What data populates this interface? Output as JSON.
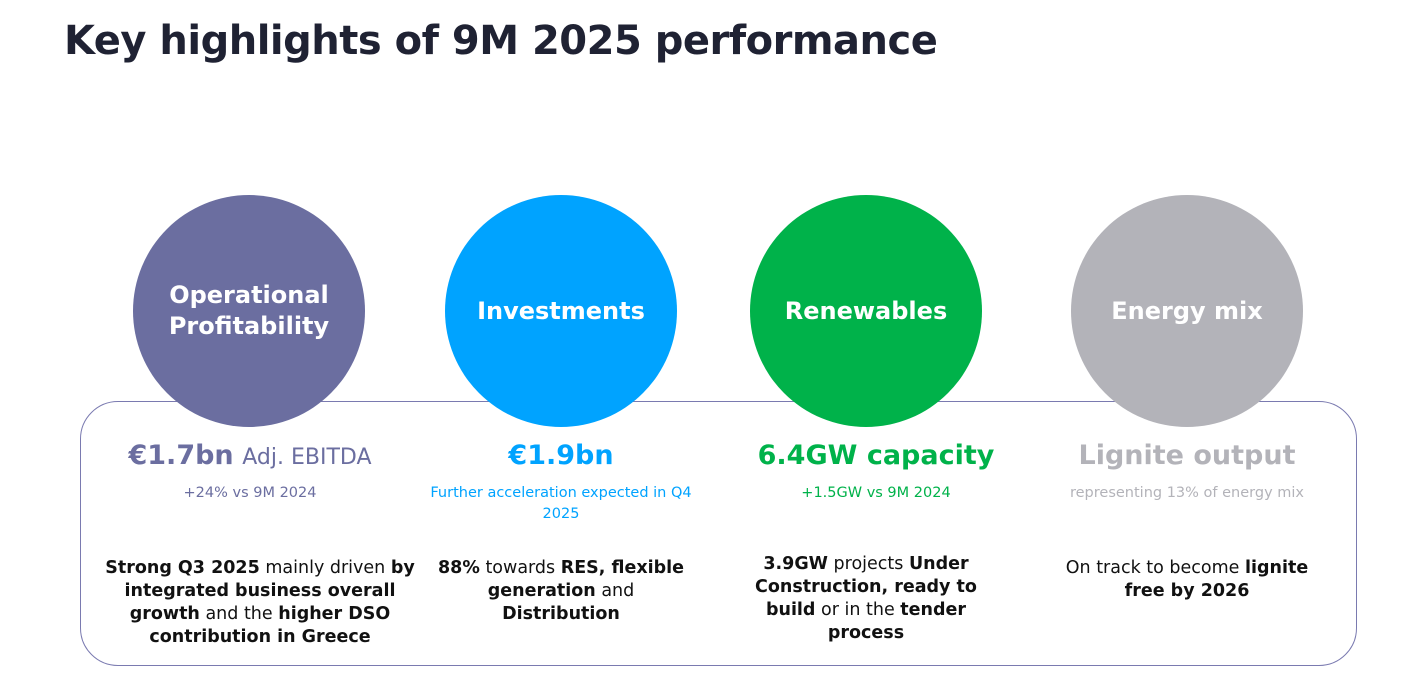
{
  "title": "Key highlights of 9M 2025 performance",
  "colors": {
    "profitability": "#6b6ea0",
    "investments": "#00a3ff",
    "renewables": "#00b24a",
    "energy_mix": "#b3b3b9"
  },
  "pillars": [
    {
      "circle_label": "Operational\nProfitability",
      "headline_value": "€1.7bn",
      "headline_suffix": "Adj. EBITDA",
      "sub": "+24% vs 9M 2024",
      "desc": [
        {
          "b": "Strong Q3 2025"
        },
        {
          "t": " mainly driven "
        },
        {
          "b": "by integrated business overall growth"
        },
        {
          "t": " and the "
        },
        {
          "b": "higher DSO contribution in Greece"
        }
      ]
    },
    {
      "circle_label": "Investments",
      "headline_value": "€1.9bn",
      "headline_suffix": "",
      "sub": "Further acceleration expected in Q4 2025",
      "desc": [
        {
          "b": "88%"
        },
        {
          "t": " towards "
        },
        {
          "b": "RES, flexible generation"
        },
        {
          "t": " and "
        },
        {
          "b": "Distribution"
        }
      ]
    },
    {
      "circle_label": "Renewables",
      "headline_value": "6.4GW capacity",
      "headline_suffix": "",
      "sub": "+1.5GW vs 9M 2024",
      "desc": [
        {
          "b": "3.9GW"
        },
        {
          "t": " projects "
        },
        {
          "b": "Under Construction, ready to build"
        },
        {
          "t": " or in the "
        },
        {
          "b": "tender process"
        }
      ]
    },
    {
      "circle_label": "Energy mix",
      "headline_value": "Lignite output",
      "headline_suffix": "",
      "sub": "representing 13% of energy mix",
      "desc": [
        {
          "t": "On track to become "
        },
        {
          "b": "lignite free by 2026"
        }
      ]
    }
  ]
}
